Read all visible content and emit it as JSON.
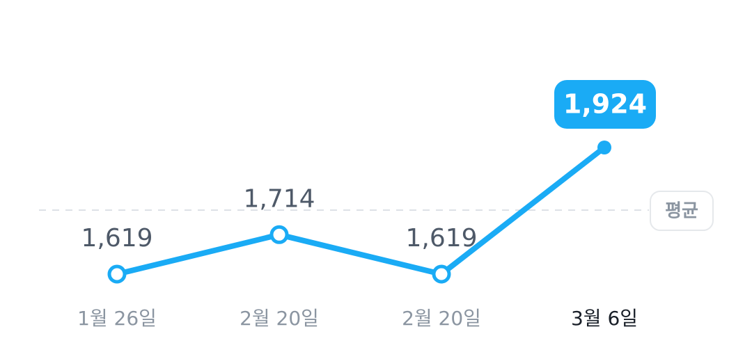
{
  "chart_data": {
    "type": "line",
    "categories": [
      "1월 26일",
      "2월 20일",
      "2월 20일",
      "3월 6일"
    ],
    "values": [
      1619,
      1714,
      1619,
      1924
    ],
    "value_labels": [
      "1,619",
      "1,714",
      "1,619",
      "1,924"
    ],
    "highlight_index": 3,
    "average_label": "평균",
    "ylim": [
      1400,
      2050
    ],
    "grid": false,
    "colors": {
      "line": "#1aabf5",
      "point_fill": "#ffffff",
      "average_line": "#dde1e6",
      "average_badge_border": "#e5e8eb",
      "callout_bg": "#1aabf5",
      "value_label": "#4e5968",
      "x_label": "#8b95a1",
      "x_label_active": "#191f28"
    }
  }
}
